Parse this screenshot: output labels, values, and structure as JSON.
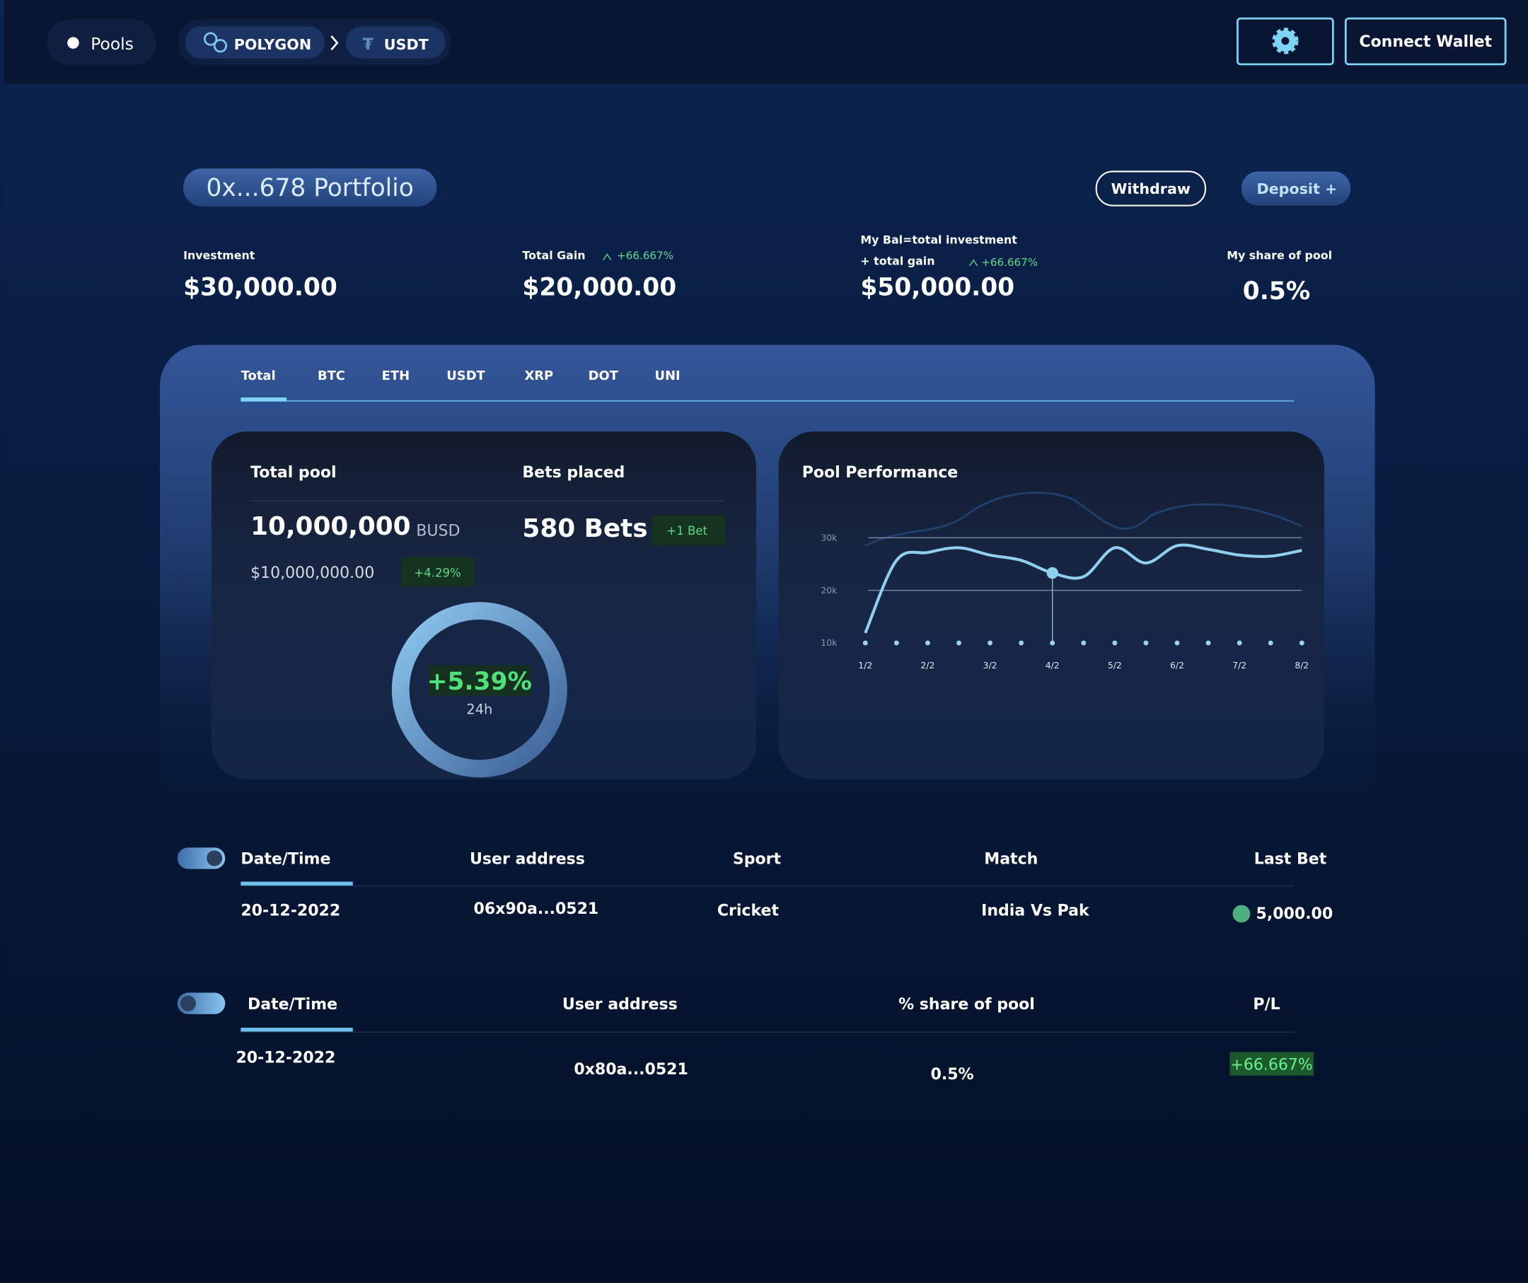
{
  "nav": {
    "pools": "Pools",
    "chain": "POLYGON",
    "token": "USDT",
    "connect": "Connect Wallet"
  },
  "portfolio": {
    "title": "0x...678 Portfolio",
    "withdraw": "Withdraw",
    "deposit": "Deposit +"
  },
  "stats": [
    {
      "label": "Investment",
      "value": "$30,000.00"
    },
    {
      "label": "Total Gain",
      "change": "+66.667%",
      "value": "$20,000.00"
    },
    {
      "label": "My Bal=total investment",
      "label2": "+ total gain",
      "change": "+66.667%",
      "value": "$50,000.00"
    },
    {
      "label": "My share of pool",
      "value": "0.5%"
    }
  ],
  "tabs": [
    "Total",
    "BTC",
    "ETH",
    "USDT",
    "XRP",
    "DOT",
    "UNI"
  ],
  "total_pool": {
    "label": "Total pool",
    "amount": "10,000,000",
    "unit": "BUSD",
    "usd": "$10,000,000.00",
    "change": "+4.29%"
  },
  "bets": {
    "label": "Bets placed",
    "value": "580 Bets",
    "badge": "+1 Bet"
  },
  "gauge": {
    "value": "+5.39%",
    "period": "24h"
  },
  "pool_performance": {
    "type": "line",
    "title": "Pool Performance",
    "categories": [
      "1/2",
      null,
      "2/2",
      null,
      "3/2",
      null,
      "4/2",
      null,
      "5/2",
      null,
      "6/2",
      null,
      "7/2",
      null,
      "8/2"
    ],
    "values": [
      11900,
      25700,
      27200,
      28100,
      26700,
      25700,
      23300,
      22600,
      28100,
      25200,
      28500,
      27800,
      26700,
      26500,
      27600
    ],
    "color": "#8fd0f0",
    "ylim": [
      10000,
      33000
    ],
    "yticks": [
      {
        "value": 10000,
        "label": "10k"
      },
      {
        "value": 20000,
        "label": "20k"
      },
      {
        "value": 30000,
        "label": "30k"
      }
    ],
    "grid": true
  },
  "table1": {
    "headers": [
      "Date/Time",
      "User address",
      "Sport",
      "Match",
      "Last Bet"
    ],
    "rows": [
      [
        "20-12-2022",
        "06x90a...0521",
        "Cricket",
        "India Vs Pak",
        "5,000.00"
      ]
    ]
  },
  "table2": {
    "headers": [
      "Date/Time",
      "User address",
      "% share of pool",
      "P/L"
    ],
    "rows": [
      [
        "20-12-2022",
        "0x80a...0521",
        "0.5%",
        "+66.667%"
      ]
    ]
  }
}
